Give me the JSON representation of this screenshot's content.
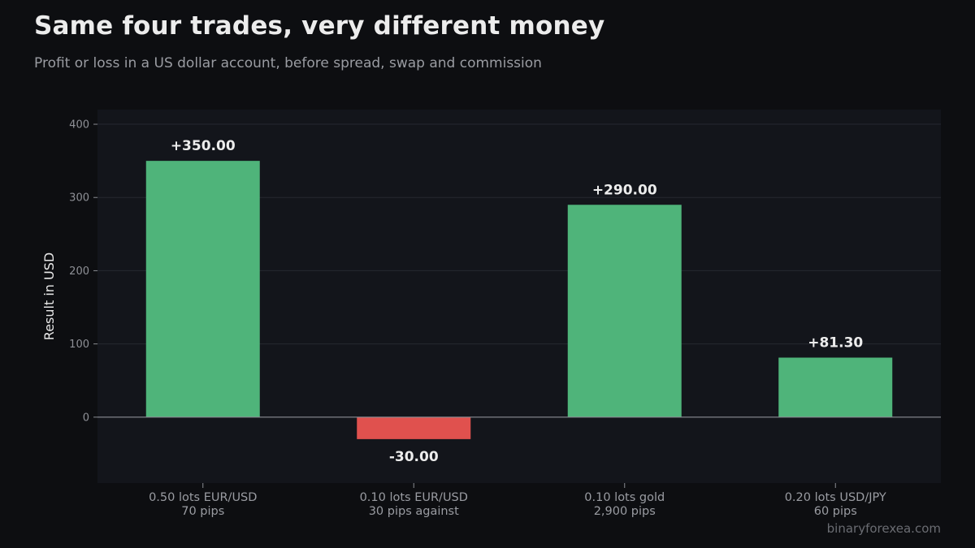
{
  "header": {
    "title": "Same four trades, very different money",
    "subtitle": "Profit or loss in a US dollar account, before spread, swap and commission"
  },
  "watermark": "binaryforexea.com",
  "colors": {
    "positive": "#4fb47a",
    "negative": "#e0514e",
    "plot_bg": "#13151b",
    "page_bg": "#0d0e11"
  },
  "chart_data": {
    "type": "bar",
    "categories": [
      [
        "0.50 lots EUR/USD",
        "70 pips"
      ],
      [
        "0.10 lots EUR/USD",
        "30 pips against"
      ],
      [
        "0.10 lots gold",
        "2,900 pips"
      ],
      [
        "0.20 lots USD/JPY",
        "60 pips"
      ]
    ],
    "values": [
      350.0,
      -30.0,
      290.0,
      81.3
    ],
    "value_labels": [
      "+350.00",
      "-30.00",
      "+290.00",
      "+81.30"
    ],
    "ylabel": "Result in USD",
    "ylim": [
      -90,
      420
    ],
    "yticks": [
      0,
      100,
      200,
      300,
      400
    ],
    "ytick_labels": [
      "0",
      "100",
      "200",
      "300",
      "400"
    ],
    "grid": true
  }
}
